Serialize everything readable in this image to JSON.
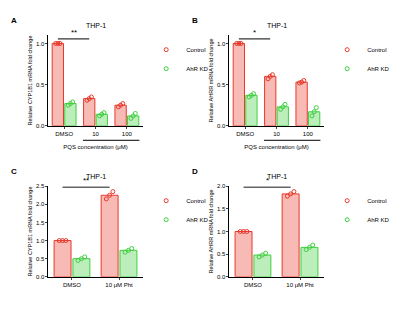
{
  "chart_data": [
    {
      "type": "bar",
      "panel": "A",
      "title": "THP-1",
      "x_label": "PQS concentration (μM)",
      "y_label": "Relative CYP1B1 mRNA fold change",
      "categories": [
        "DMSO",
        "10",
        "100"
      ],
      "series": [
        {
          "name": "Control",
          "color": "#e8392c",
          "values": [
            1.0,
            0.33,
            0.25
          ],
          "points": [
            [
              1.0,
              1.0,
              1.0
            ],
            [
              0.31,
              0.33,
              0.35
            ],
            [
              0.23,
              0.25,
              0.27
            ]
          ]
        },
        {
          "name": "AhR KD",
          "color": "#3fcf3f",
          "values": [
            0.27,
            0.14,
            0.12
          ],
          "points": [
            [
              0.25,
              0.27,
              0.29
            ],
            [
              0.12,
              0.14,
              0.16
            ],
            [
              0.09,
              0.12,
              0.15
            ]
          ]
        }
      ],
      "ylim": [
        0,
        1.1
      ],
      "yticks": [
        {
          "value": 0,
          "label": "0.0"
        },
        0.5,
        {
          "value": 1,
          "label": "1.0"
        }
      ],
      "significance": [
        {
          "from": "DMSO",
          "to": "10",
          "label": "**"
        }
      ]
    },
    {
      "type": "bar",
      "panel": "B",
      "title": "THP-1",
      "x_label": "PQS concentration (μM)",
      "y_label": "Relative AHRR mRNA fold change",
      "categories": [
        "DMSO",
        "10",
        "100"
      ],
      "series": [
        {
          "name": "Control",
          "color": "#e8392c",
          "values": [
            1.0,
            0.6,
            0.53
          ],
          "points": [
            [
              1.0,
              1.0,
              1.0
            ],
            [
              0.57,
              0.6,
              0.62
            ],
            [
              0.52,
              0.53,
              0.55
            ]
          ]
        },
        {
          "name": "AhR KD",
          "color": "#3fcf3f",
          "values": [
            0.37,
            0.23,
            0.17
          ],
          "points": [
            [
              0.35,
              0.37,
              0.39
            ],
            [
              0.2,
              0.23,
              0.26
            ],
            [
              0.12,
              0.17,
              0.22
            ]
          ]
        }
      ],
      "ylim": [
        0,
        1.1
      ],
      "yticks": [
        {
          "value": 0,
          "label": "0.0"
        },
        0.5,
        {
          "value": 1,
          "label": "1.0"
        }
      ],
      "significance": [
        {
          "from": "DMSO",
          "to": "10",
          "label": "*"
        }
      ]
    },
    {
      "type": "bar",
      "panel": "C",
      "title": "THP-1",
      "y_label": "Relative CYP1B1 mRNA fold change",
      "categories": [
        "DMSO",
        "10 μM Pht"
      ],
      "series": [
        {
          "name": "Control",
          "color": "#e8392c",
          "values": [
            1.0,
            2.25
          ],
          "points": [
            [
              1.0,
              1.0,
              1.0
            ],
            [
              2.15,
              2.25,
              2.35
            ]
          ]
        },
        {
          "name": "AhR KD",
          "color": "#3fcf3f",
          "values": [
            0.5,
            0.73
          ],
          "points": [
            [
              0.45,
              0.5,
              0.55
            ],
            [
              0.68,
              0.73,
              0.78
            ]
          ]
        }
      ],
      "ylim": [
        0,
        2.5
      ],
      "yticks": [
        {
          "value": 0,
          "label": "0.0"
        },
        0.5,
        {
          "value": 1,
          "label": "1.0"
        },
        1.5,
        {
          "value": 2,
          "label": "2.0"
        },
        2.5
      ],
      "significance": [
        {
          "from": "DMSO",
          "to": "10 μM Pht",
          "label": "**"
        }
      ]
    },
    {
      "type": "bar",
      "panel": "D",
      "title": "THP-1",
      "y_label": "Relative AHRR mRNA fold change",
      "categories": [
        "DMSO",
        "10 μM Pht"
      ],
      "series": [
        {
          "name": "Control",
          "color": "#e8392c",
          "values": [
            1.0,
            1.83
          ],
          "points": [
            [
              1.0,
              1.0,
              1.0
            ],
            [
              1.78,
              1.83,
              1.88
            ]
          ]
        },
        {
          "name": "AhR KD",
          "color": "#3fcf3f",
          "values": [
            0.48,
            0.65
          ],
          "points": [
            [
              0.44,
              0.48,
              0.52
            ],
            [
              0.6,
              0.65,
              0.7
            ]
          ]
        }
      ],
      "ylim": [
        0,
        2.0
      ],
      "yticks": [
        {
          "value": 0,
          "label": "0.0"
        },
        0.5,
        {
          "value": 1,
          "label": "1.0"
        },
        1.5,
        {
          "value": 2,
          "label": "2.0"
        }
      ],
      "significance": [
        {
          "from": "DMSO",
          "to": "10 μM Pht",
          "label": "*"
        }
      ]
    }
  ]
}
